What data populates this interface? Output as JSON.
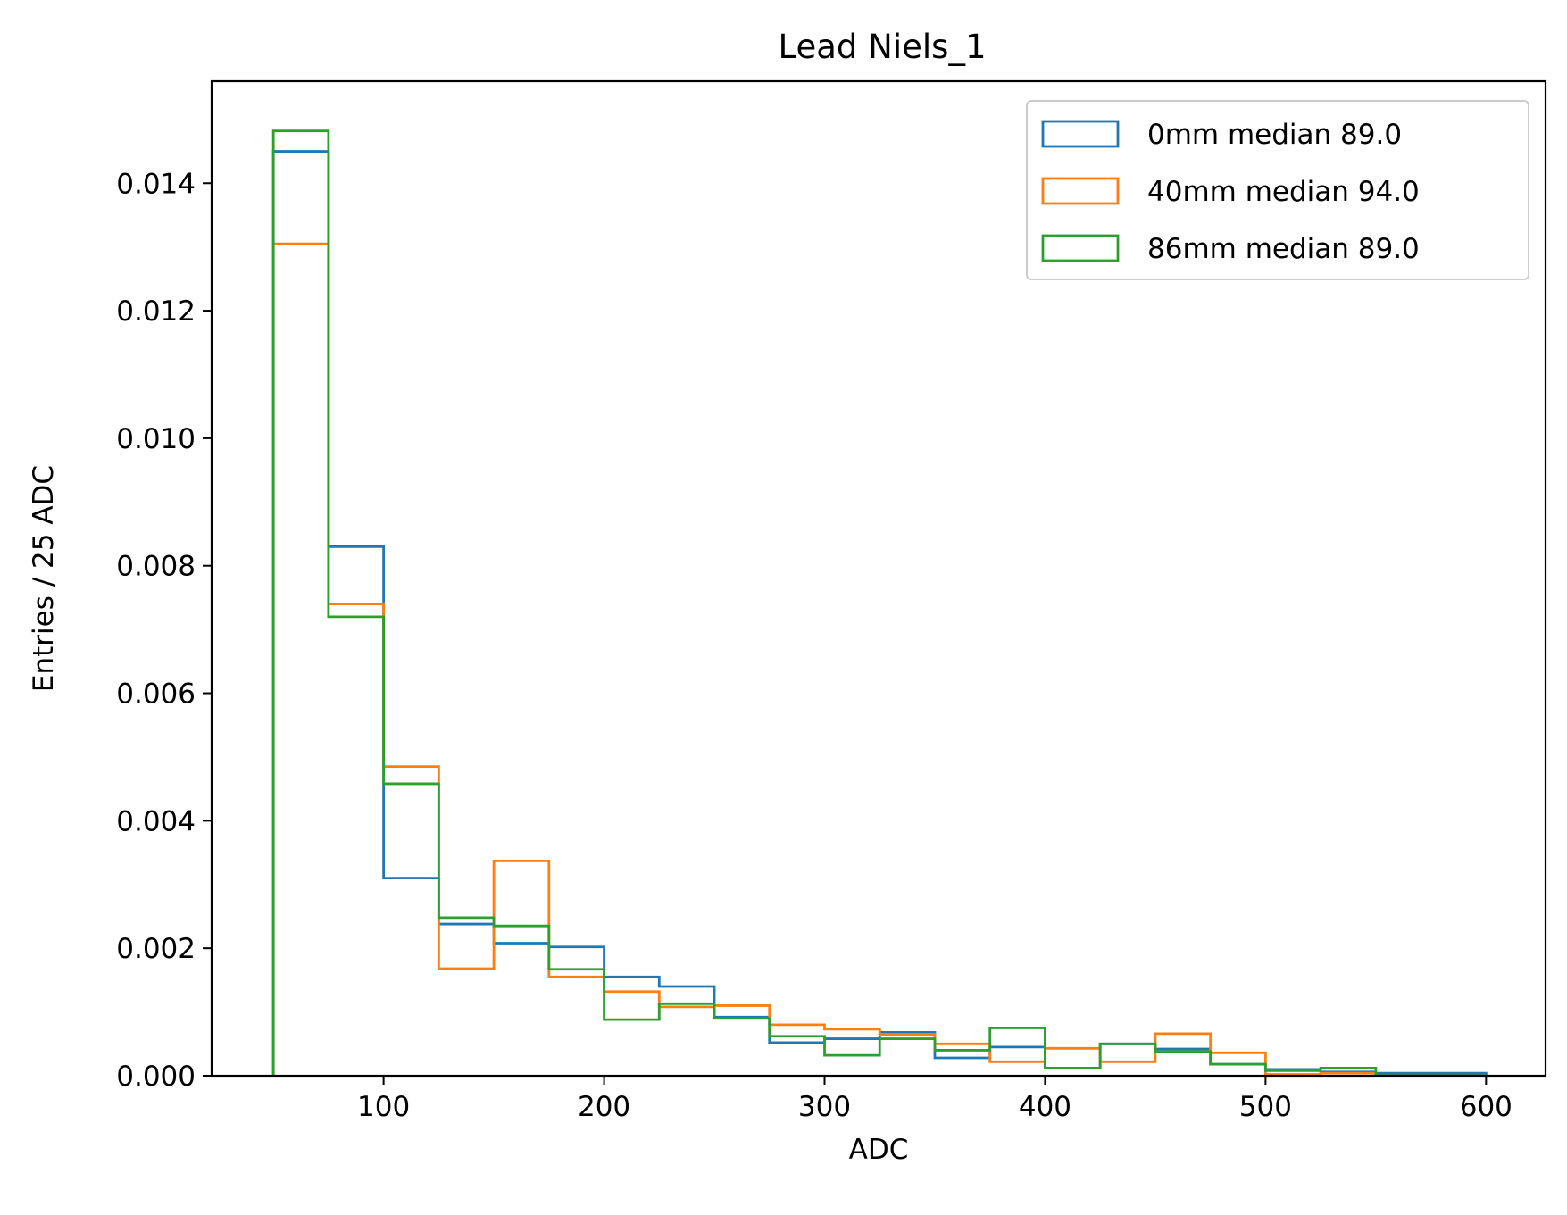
{
  "chart_data": {
    "type": "histogram",
    "title": "Lead Niels_1",
    "xlabel": "ADC",
    "ylabel": "Entries / 25 ADC",
    "xlim": [
      22,
      627
    ],
    "ylim": [
      0,
      0.0156
    ],
    "xticks": [
      100,
      200,
      300,
      400,
      500,
      600
    ],
    "yticks": [
      0.0,
      0.002,
      0.004,
      0.006,
      0.008,
      0.01,
      0.012,
      0.014
    ],
    "xtick_labels": [
      "100",
      "200",
      "300",
      "400",
      "500",
      "600"
    ],
    "ytick_labels": [
      "0.000",
      "0.002",
      "0.004",
      "0.006",
      "0.008",
      "0.010",
      "0.012",
      "0.014"
    ],
    "grid": false,
    "legend_position": "top-right",
    "bin_edges": [
      50,
      75,
      100,
      125,
      150,
      175,
      200,
      225,
      250,
      275,
      300,
      325,
      350,
      375,
      400,
      425,
      450,
      475,
      500,
      525,
      550,
      575,
      600
    ],
    "series": [
      {
        "name": "0mm median 89.0",
        "color": "#1f77b4",
        "values": [
          0.0145,
          0.0083,
          0.0031,
          0.00238,
          0.00208,
          0.00202,
          0.00155,
          0.0014,
          0.00092,
          0.00052,
          0.00058,
          0.00068,
          0.00028,
          0.00045,
          0.00012,
          0.0005,
          0.00042,
          0.00018,
          0.0001,
          6e-05,
          4e-05,
          4e-05
        ]
      },
      {
        "name": "40mm median 94.0",
        "color": "#ff7f0e",
        "values": [
          0.01305,
          0.0074,
          0.00485,
          0.00168,
          0.00337,
          0.00155,
          0.00132,
          0.00108,
          0.0011,
          0.0008,
          0.00073,
          0.00065,
          0.0005,
          0.00022,
          0.00043,
          0.00022,
          0.00066,
          0.00036,
          2e-05,
          4e-05,
          0.0,
          0.0
        ]
      },
      {
        "name": "86mm median 89.0",
        "color": "#2ca02c",
        "values": [
          0.01482,
          0.0072,
          0.00458,
          0.00248,
          0.00235,
          0.00167,
          0.00088,
          0.00113,
          0.0009,
          0.00062,
          0.00032,
          0.00058,
          0.0004,
          0.00075,
          0.00012,
          0.0005,
          0.00038,
          0.00018,
          8e-05,
          0.00012,
          0.0,
          0.0
        ]
      }
    ]
  }
}
